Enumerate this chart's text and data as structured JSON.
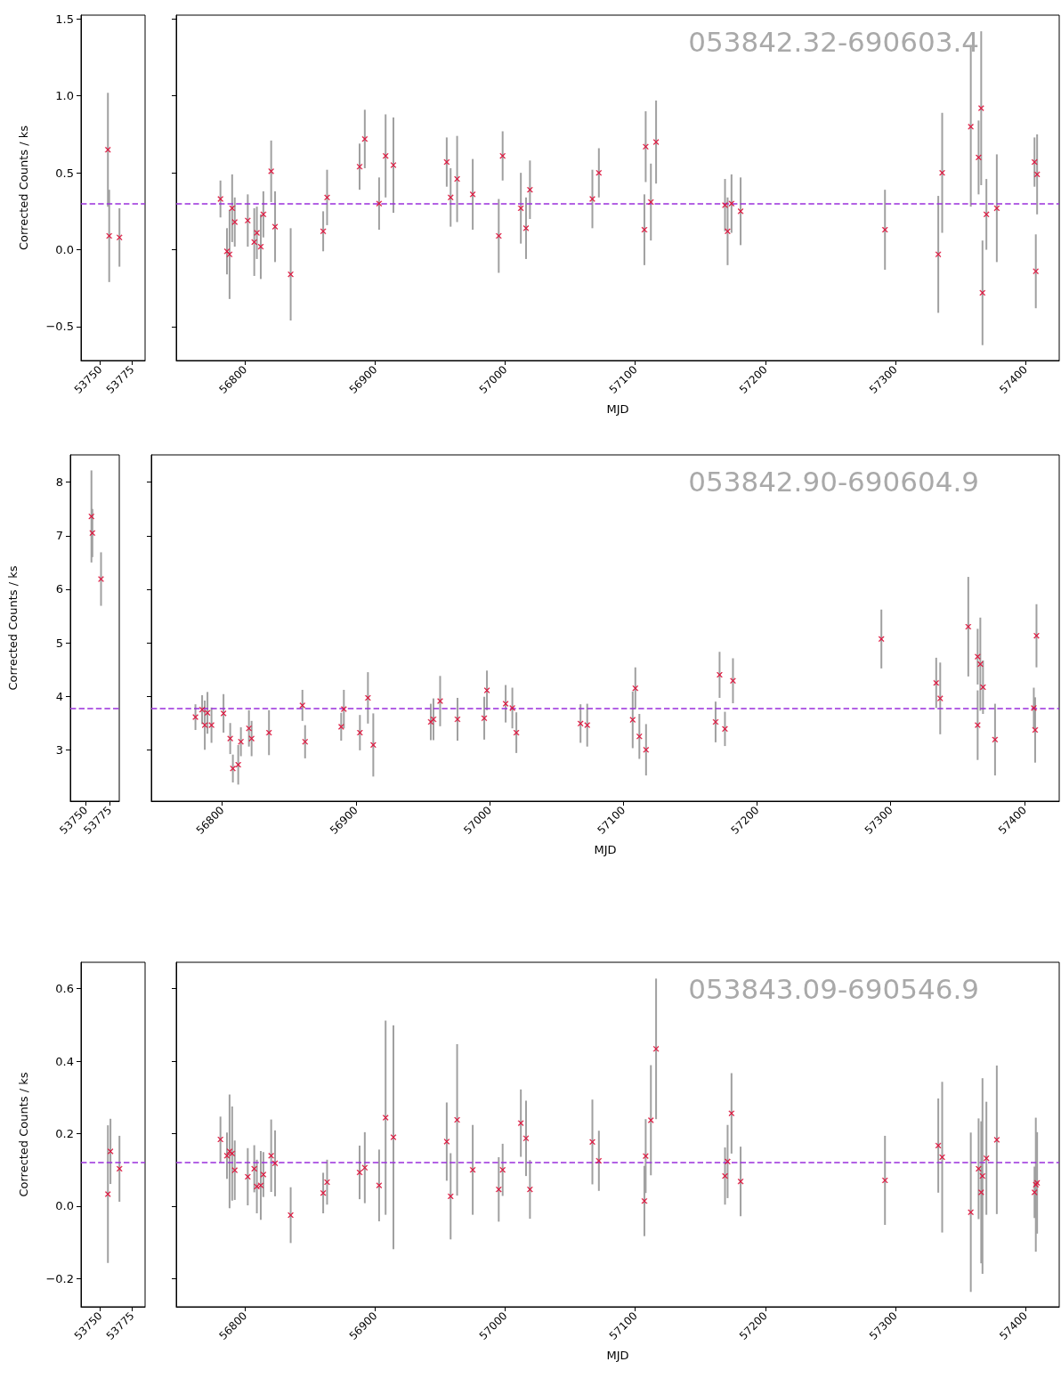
{
  "chart_data": [
    {
      "type": "scatter",
      "ylabel": "Corrected Counts / ks",
      "x": [
        53756,
        53757,
        53765
      ],
      "values": [
        0.65,
        0.09,
        0.08
      ],
      "errors": [
        0.37,
        0.3,
        0.19
      ],
      "color": "#dc143c",
      "marker": "cross",
      "xlim": [
        53735,
        53785
      ],
      "xticks": [
        53750,
        53775
      ],
      "ylim": [
        -0.72,
        1.525
      ],
      "yticks": [
        {
          "value": -0.5,
          "label": "−0.5"
        },
        {
          "value": 0,
          "label": "0.0"
        },
        0.5,
        {
          "value": 1,
          "label": "1.0"
        },
        1.5
      ],
      "ref_lines": [
        {
          "axis": "y",
          "value": 0.3,
          "color": "#9a2fdc",
          "line_style": "dashed"
        }
      ]
    },
    {
      "type": "scatter",
      "xlabel": "MJD",
      "annotations": [
        "053842.32-690603.4"
      ],
      "tick_labels": "x",
      "x": [
        56781,
        56786,
        56788,
        56790,
        56792,
        56802,
        56807,
        56809,
        56812,
        56814,
        56820,
        56823,
        56835,
        56860,
        56863,
        56888,
        56892,
        56903,
        56908,
        56914,
        56955,
        56958,
        56963,
        56975,
        56995,
        56998,
        57012,
        57016,
        57019,
        57067,
        57072,
        57107,
        57108,
        57112,
        57116,
        57169,
        57171,
        57174,
        57181,
        57292,
        57333,
        57336,
        57358,
        57364,
        57366,
        57367,
        57370,
        57378,
        57407,
        57408,
        57409
      ],
      "values": [
        0.33,
        -0.01,
        -0.03,
        0.27,
        0.18,
        0.19,
        0.05,
        0.11,
        0.02,
        0.23,
        0.51,
        0.15,
        -0.16,
        0.12,
        0.34,
        0.54,
        0.72,
        0.3,
        0.61,
        0.55,
        0.57,
        0.34,
        0.46,
        0.36,
        0.09,
        0.61,
        0.27,
        0.14,
        0.39,
        0.33,
        0.5,
        0.13,
        0.67,
        0.31,
        0.7,
        0.29,
        0.12,
        0.3,
        0.25,
        0.13,
        -0.03,
        0.5,
        0.8,
        0.6,
        0.92,
        -0.28,
        0.23,
        0.27,
        0.57,
        -0.14,
        0.49
      ],
      "errors": [
        0.12,
        0.15,
        0.29,
        0.22,
        0.16,
        0.17,
        0.22,
        0.17,
        0.21,
        0.15,
        0.2,
        0.23,
        0.3,
        0.13,
        0.18,
        0.15,
        0.19,
        0.17,
        0.27,
        0.31,
        0.16,
        0.19,
        0.28,
        0.23,
        0.24,
        0.16,
        0.23,
        0.2,
        0.19,
        0.19,
        0.16,
        0.23,
        0.23,
        0.25,
        0.27,
        0.17,
        0.22,
        0.19,
        0.22,
        0.26,
        0.38,
        0.39,
        0.52,
        0.24,
        0.5,
        0.34,
        0.23,
        0.35,
        0.16,
        0.24,
        0.26
      ],
      "color": "#dc143c",
      "marker": "cross",
      "xlim": [
        56747,
        57426
      ],
      "xticks": [
        56800,
        56900,
        57000,
        57100,
        57200,
        57300,
        57400
      ],
      "ylim": [
        -0.72,
        1.525
      ],
      "yticks": [
        -0.5,
        0,
        0.5,
        1,
        1.5
      ],
      "ref_lines": [
        {
          "axis": "y",
          "value": 0.3,
          "color": "#9a2fdc",
          "line_style": "dashed"
        }
      ]
    },
    {
      "type": "scatter",
      "ylabel": "Corrected Counts / ks",
      "x": [
        53756,
        53757,
        53766
      ],
      "values": [
        7.36,
        7.05,
        6.19
      ],
      "errors": [
        0.86,
        0.45,
        0.5
      ],
      "color": "#dc143c",
      "marker": "cross",
      "xlim": [
        53734,
        53785
      ],
      "xticks": [
        53750,
        53775
      ],
      "ylim": [
        2.04,
        8.51
      ],
      "yticks": [
        3,
        4,
        5,
        6,
        7,
        8
      ],
      "ref_lines": [
        {
          "axis": "y",
          "value": 3.77,
          "color": "#9a2fdc",
          "line_style": "dashed"
        }
      ]
    },
    {
      "type": "scatter",
      "xlabel": "MJD",
      "annotations": [
        "053842.90-690604.9"
      ],
      "tick_labels": "x",
      "x": [
        56780,
        56785,
        56787,
        56789,
        56792,
        56801,
        56806,
        56808,
        56812,
        56814,
        56820,
        56822,
        56835,
        56860,
        56862,
        56889,
        56891,
        56903,
        56909,
        56913,
        56956,
        56958,
        56963,
        56976,
        56996,
        56998,
        57012,
        57017,
        57020,
        57068,
        57073,
        57107,
        57109,
        57112,
        57117,
        57169,
        57172,
        57176,
        57182,
        57293,
        57334,
        57337,
        57358,
        57365,
        57365,
        57367,
        57369,
        57378,
        57407,
        57408,
        57409
      ],
      "values": [
        3.61,
        3.75,
        3.46,
        3.69,
        3.46,
        3.68,
        3.21,
        2.65,
        2.72,
        3.15,
        3.4,
        3.21,
        3.32,
        3.83,
        3.15,
        3.43,
        3.76,
        3.32,
        3.97,
        3.09,
        3.52,
        3.57,
        3.91,
        3.57,
        3.59,
        4.11,
        3.86,
        3.78,
        3.32,
        3.49,
        3.46,
        3.56,
        4.15,
        3.25,
        3.0,
        3.52,
        4.4,
        3.39,
        4.29,
        5.07,
        4.25,
        3.96,
        5.3,
        4.74,
        3.46,
        4.6,
        4.17,
        3.19,
        3.78,
        3.37,
        5.13
      ],
      "errors": [
        0.24,
        0.27,
        0.46,
        0.39,
        0.33,
        0.36,
        0.29,
        0.26,
        0.37,
        0.27,
        0.34,
        0.33,
        0.42,
        0.29,
        0.31,
        0.26,
        0.36,
        0.33,
        0.48,
        0.59,
        0.34,
        0.39,
        0.47,
        0.4,
        0.4,
        0.37,
        0.35,
        0.38,
        0.38,
        0.36,
        0.4,
        0.53,
        0.39,
        0.42,
        0.48,
        0.38,
        0.43,
        0.32,
        0.42,
        0.55,
        0.47,
        0.67,
        0.93,
        0.52,
        0.65,
        0.87,
        0.5,
        0.67,
        0.38,
        0.61,
        0.59
      ],
      "color": "#dc143c",
      "marker": "cross",
      "xlim": [
        56747,
        57426
      ],
      "xticks": [
        56800,
        56900,
        57000,
        57100,
        57200,
        57300,
        57400
      ],
      "ylim": [
        2.04,
        8.51
      ],
      "yticks": [
        3,
        4,
        5,
        6,
        7,
        8
      ],
      "ref_lines": [
        {
          "axis": "y",
          "value": 3.77,
          "color": "#9a2fdc",
          "line_style": "dashed"
        }
      ]
    },
    {
      "type": "scatter",
      "ylabel": "Corrected Counts / ks",
      "x": [
        53756,
        53758,
        53765
      ],
      "values": [
        0.033,
        0.151,
        0.103
      ],
      "errors": [
        0.19,
        0.09,
        0.091
      ],
      "color": "#dc143c",
      "marker": "cross",
      "xlim": [
        53735,
        53785
      ],
      "xticks": [
        53750,
        53775
      ],
      "ylim": [
        -0.278,
        0.673
      ],
      "yticks": [
        {
          "value": -0.2,
          "label": "−0.2"
        },
        {
          "value": 0,
          "label": "0.0"
        },
        0.2,
        0.4,
        0.6
      ],
      "ref_lines": [
        {
          "axis": "y",
          "value": 0.12,
          "color": "#9a2fdc",
          "line_style": "dashed"
        }
      ]
    },
    {
      "type": "scatter",
      "xlabel": "MJD",
      "annotations": [
        "053843.09-690546.9"
      ],
      "tick_labels": "x",
      "x": [
        56781,
        56786,
        56788,
        56790,
        56792,
        56802,
        56807,
        56809,
        56812,
        56814,
        56820,
        56823,
        56835,
        56860,
        56863,
        56888,
        56892,
        56903,
        56908,
        56914,
        56955,
        56958,
        56963,
        56975,
        56995,
        56998,
        57012,
        57016,
        57019,
        57067,
        57072,
        57107,
        57108,
        57112,
        57116,
        57169,
        57171,
        57174,
        57181,
        57292,
        57333,
        57336,
        57358,
        57364,
        57366,
        57367,
        57370,
        57378,
        57407,
        57408,
        57409
      ],
      "values": [
        0.184,
        0.139,
        0.151,
        0.145,
        0.099,
        0.081,
        0.103,
        0.054,
        0.057,
        0.087,
        0.139,
        0.118,
        -0.025,
        0.036,
        0.066,
        0.093,
        0.106,
        0.057,
        0.244,
        0.19,
        0.178,
        0.027,
        0.238,
        0.1,
        0.046,
        0.1,
        0.229,
        0.187,
        0.046,
        0.177,
        0.125,
        0.014,
        0.138,
        0.237,
        0.434,
        0.083,
        0.123,
        0.256,
        0.068,
        0.071,
        0.167,
        0.135,
        -0.017,
        0.103,
        0.038,
        0.083,
        0.132,
        0.183,
        0.038,
        0.059,
        0.064
      ],
      "errors": [
        0.063,
        0.064,
        0.157,
        0.13,
        0.082,
        0.079,
        0.065,
        0.074,
        0.095,
        0.062,
        0.1,
        0.091,
        0.077,
        0.056,
        0.062,
        0.074,
        0.098,
        0.099,
        0.268,
        0.309,
        0.108,
        0.119,
        0.209,
        0.124,
        0.089,
        0.072,
        0.093,
        0.104,
        0.081,
        0.117,
        0.083,
        0.097,
        0.102,
        0.152,
        0.194,
        0.079,
        0.101,
        0.111,
        0.096,
        0.123,
        0.13,
        0.208,
        0.22,
        0.139,
        0.196,
        0.27,
        0.156,
        0.205,
        0.071,
        0.185,
        0.14
      ],
      "color": "#dc143c",
      "marker": "cross",
      "xlim": [
        56747,
        57426
      ],
      "xticks": [
        56800,
        56900,
        57000,
        57100,
        57200,
        57300,
        57400
      ],
      "ylim": [
        -0.278,
        0.673
      ],
      "yticks": [
        -0.2,
        0,
        0.2,
        0.4,
        0.6
      ],
      "ref_lines": [
        {
          "axis": "y",
          "value": 0.12,
          "color": "#9a2fdc",
          "line_style": "dashed"
        }
      ]
    }
  ]
}
